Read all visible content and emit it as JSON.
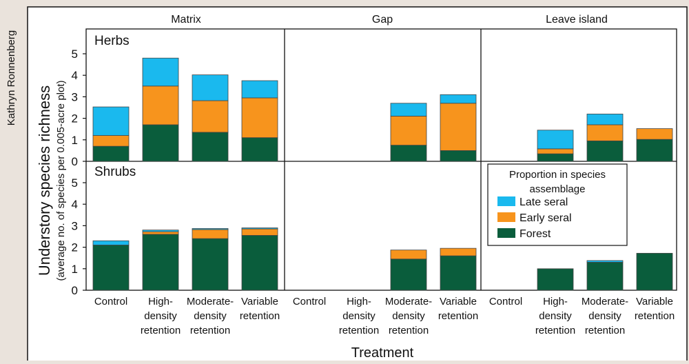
{
  "credit": "Kathryn Ronnenberg",
  "ylabel": "Understory species richness",
  "ylabel_sub": "(average no. of species per 0.005-acre plot)",
  "xlabel": "Treatment",
  "columns": [
    "Matrix",
    "Gap",
    "Leave island"
  ],
  "rows": [
    "Herbs",
    "Shrubs"
  ],
  "category_lines": [
    [
      "Control"
    ],
    [
      "High-",
      "density",
      "retention"
    ],
    [
      "Moderate-",
      "density",
      "retention"
    ],
    [
      "Variable",
      "retention"
    ]
  ],
  "legend": {
    "title_lines": [
      "Proportion in species",
      "assemblage"
    ],
    "items": [
      {
        "label": "Late seral",
        "color": "#1ab9ee"
      },
      {
        "label": "Early seral",
        "color": "#f7941d"
      },
      {
        "label": "Forest",
        "color": "#0a5d3c"
      }
    ]
  },
  "chart_data": {
    "type": "bar",
    "stacked": true,
    "ylim": [
      0,
      5.5
    ],
    "yticks": [
      0,
      1,
      2,
      3,
      4,
      5
    ],
    "categories": [
      "Control",
      "High-density retention",
      "Moderate-density retention",
      "Variable retention"
    ],
    "series_order": [
      "Forest",
      "Early seral",
      "Late seral"
    ],
    "colors": {
      "Forest": "#0a5d3c",
      "Early seral": "#f7941d",
      "Late seral": "#1ab9ee"
    },
    "panels": [
      {
        "row": "Herbs",
        "column": "Matrix",
        "bars": [
          {
            "Forest": 0.7,
            "Early seral": 0.5,
            "Late seral": 1.33
          },
          {
            "Forest": 1.7,
            "Early seral": 1.8,
            "Late seral": 1.3
          },
          {
            "Forest": 1.35,
            "Early seral": 1.47,
            "Late seral": 1.2
          },
          {
            "Forest": 1.1,
            "Early seral": 1.85,
            "Late seral": 0.8
          }
        ]
      },
      {
        "row": "Herbs",
        "column": "Gap",
        "bars": [
          null,
          null,
          {
            "Forest": 0.75,
            "Early seral": 1.35,
            "Late seral": 0.6
          },
          {
            "Forest": 0.5,
            "Early seral": 2.2,
            "Late seral": 0.4
          }
        ]
      },
      {
        "row": "Herbs",
        "column": "Leave island",
        "bars": [
          null,
          {
            "Forest": 0.35,
            "Early seral": 0.23,
            "Late seral": 0.87
          },
          {
            "Forest": 0.95,
            "Early seral": 0.75,
            "Late seral": 0.5
          },
          {
            "Forest": 1.02,
            "Early seral": 0.5,
            "Late seral": 0
          }
        ]
      },
      {
        "row": "Shrubs",
        "column": "Matrix",
        "bars": [
          {
            "Forest": 2.1,
            "Early seral": 0,
            "Late seral": 0.2
          },
          {
            "Forest": 2.6,
            "Early seral": 0.12,
            "Late seral": 0.08
          },
          {
            "Forest": 2.4,
            "Early seral": 0.42,
            "Late seral": 0.05
          },
          {
            "Forest": 2.55,
            "Early seral": 0.3,
            "Late seral": 0.05
          }
        ]
      },
      {
        "row": "Shrubs",
        "column": "Gap",
        "bars": [
          null,
          null,
          {
            "Forest": 1.45,
            "Early seral": 0.42,
            "Late seral": 0
          },
          {
            "Forest": 1.6,
            "Early seral": 0.35,
            "Late seral": 0
          }
        ]
      },
      {
        "row": "Shrubs",
        "column": "Leave island",
        "bars": [
          null,
          {
            "Forest": 1.0,
            "Early seral": 0,
            "Late seral": 0
          },
          {
            "Forest": 1.3,
            "Early seral": 0,
            "Late seral": 0.08
          },
          {
            "Forest": 1.72,
            "Early seral": 0,
            "Late seral": 0
          }
        ]
      }
    ]
  }
}
